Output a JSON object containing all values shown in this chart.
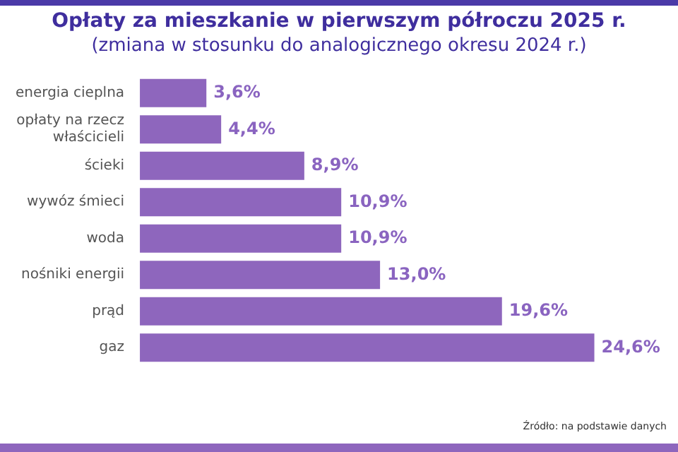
{
  "chart_data": {
    "type": "bar",
    "orientation": "horizontal",
    "title": "Opłaty za mieszkanie w pierwszym półroczu 2025 r.",
    "subtitle": "(zmiana w stosunku do analogicznego okresu 2024 r.)",
    "categories": [
      "energia cieplna",
      "opłaty na rzecz właścicieli",
      "ścieki",
      "wywóz śmieci",
      "woda",
      "nośniki energii",
      "prąd",
      "gaz"
    ],
    "values": [
      3.6,
      4.4,
      8.9,
      10.9,
      10.9,
      13.0,
      19.6,
      24.6
    ],
    "value_labels": [
      "3,6%",
      "4,4%",
      "8,9%",
      "10,9%",
      "10,9%",
      "13,0%",
      "19,6%",
      "24,6%"
    ],
    "color": "#8e66bd",
    "legend": false,
    "tick_labels": "y",
    "annotations": [
      "Źródło: na podstawie danych"
    ]
  }
}
